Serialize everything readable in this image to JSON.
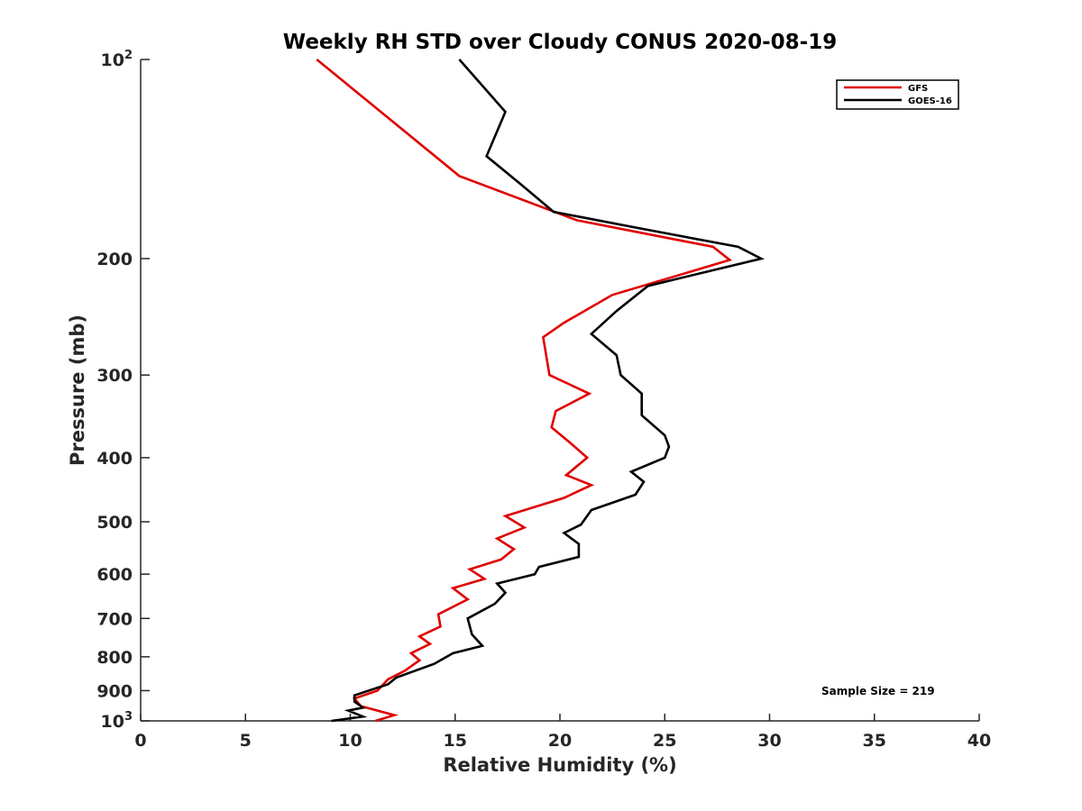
{
  "chart_data": {
    "type": "line",
    "title": "Weekly RH STD over Cloudy CONUS 2020-08-19",
    "xlabel": "Relative Humidity (%)",
    "ylabel": "Pressure (mb)",
    "xlim": [
      0,
      40
    ],
    "ylim": [
      100,
      1000
    ],
    "y_scale": "log",
    "y_reversed": true,
    "x_ticks": [
      "0",
      "5",
      "10",
      "15",
      "20",
      "25",
      "30",
      "35",
      "40"
    ],
    "y_ticks": [
      {
        "value": 100,
        "base": "10",
        "exp": "2"
      },
      {
        "value": 200,
        "label": "200"
      },
      {
        "value": 300,
        "label": "300"
      },
      {
        "value": 400,
        "label": "400"
      },
      {
        "value": 500,
        "label": "500"
      },
      {
        "value": 600,
        "label": "600"
      },
      {
        "value": 700,
        "label": "700"
      },
      {
        "value": 800,
        "label": "800"
      },
      {
        "value": 900,
        "label": "900"
      },
      {
        "value": 1000,
        "base": "10",
        "exp": "3"
      }
    ],
    "grid": false,
    "legend_position": "top-right",
    "annotation": "Sample Size = 219",
    "series": [
      {
        "name": "GFS",
        "color": "#e00000",
        "points": [
          [
            8.4,
            100
          ],
          [
            15.2,
            150
          ],
          [
            20.8,
            175
          ],
          [
            27.3,
            192
          ],
          [
            28.1,
            201
          ],
          [
            22.5,
            227
          ],
          [
            20.2,
            250
          ],
          [
            19.2,
            263
          ],
          [
            19.5,
            300
          ],
          [
            21.4,
            320
          ],
          [
            19.8,
            340
          ],
          [
            19.6,
            360
          ],
          [
            20.5,
            380
          ],
          [
            21.3,
            400
          ],
          [
            20.3,
            425
          ],
          [
            21.5,
            440
          ],
          [
            20.2,
            460
          ],
          [
            17.4,
            490
          ],
          [
            18.3,
            510
          ],
          [
            17.0,
            530
          ],
          [
            17.8,
            550
          ],
          [
            17.2,
            570
          ],
          [
            15.7,
            590
          ],
          [
            16.4,
            610
          ],
          [
            14.9,
            630
          ],
          [
            15.6,
            655
          ],
          [
            14.2,
            690
          ],
          [
            14.3,
            720
          ],
          [
            13.3,
            745
          ],
          [
            13.8,
            765
          ],
          [
            12.9,
            790
          ],
          [
            13.3,
            810
          ],
          [
            12.6,
            840
          ],
          [
            11.8,
            865
          ],
          [
            11.3,
            900
          ],
          [
            10.2,
            925
          ],
          [
            10.5,
            950
          ],
          [
            12.1,
            980
          ],
          [
            11.2,
            1000
          ]
        ]
      },
      {
        "name": "GOES-16",
        "color": "#000000",
        "points": [
          [
            15.2,
            100
          ],
          [
            17.4,
            120
          ],
          [
            16.5,
            140
          ],
          [
            18.2,
            155
          ],
          [
            19.7,
            170
          ],
          [
            23.8,
            180
          ],
          [
            28.5,
            192
          ],
          [
            29.6,
            200
          ],
          [
            24.2,
            220
          ],
          [
            22.7,
            240
          ],
          [
            21.5,
            260
          ],
          [
            22.7,
            280
          ],
          [
            22.9,
            300
          ],
          [
            23.9,
            320
          ],
          [
            23.9,
            345
          ],
          [
            25.0,
            370
          ],
          [
            25.2,
            385
          ],
          [
            25.0,
            400
          ],
          [
            23.4,
            420
          ],
          [
            24.0,
            435
          ],
          [
            23.6,
            455
          ],
          [
            21.5,
            480
          ],
          [
            21.0,
            505
          ],
          [
            20.2,
            520
          ],
          [
            20.9,
            540
          ],
          [
            20.9,
            565
          ],
          [
            19.0,
            585
          ],
          [
            18.8,
            600
          ],
          [
            17.0,
            620
          ],
          [
            17.4,
            640
          ],
          [
            16.9,
            665
          ],
          [
            15.6,
            700
          ],
          [
            15.8,
            740
          ],
          [
            16.3,
            770
          ],
          [
            14.9,
            790
          ],
          [
            14.0,
            820
          ],
          [
            12.2,
            860
          ],
          [
            11.8,
            880
          ],
          [
            10.2,
            915
          ],
          [
            10.2,
            935
          ],
          [
            10.6,
            955
          ],
          [
            9.9,
            965
          ],
          [
            10.6,
            985
          ],
          [
            9.1,
            1000
          ]
        ]
      }
    ]
  }
}
